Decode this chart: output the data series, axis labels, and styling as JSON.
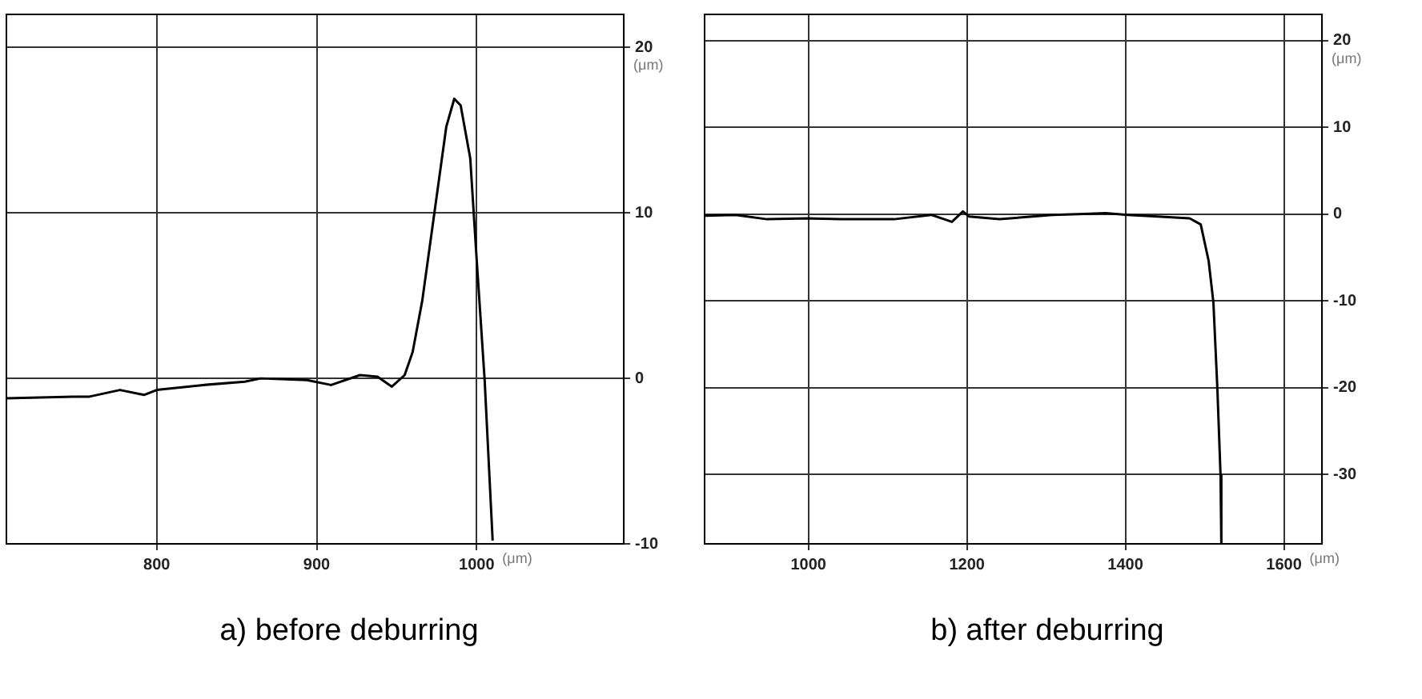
{
  "chart_data": [
    {
      "type": "line",
      "title": "a) before deburring",
      "xlabel": "(μm)",
      "ylabel": "(μm)",
      "x": [
        706,
        748,
        758,
        777,
        792,
        800,
        829,
        855,
        865,
        894,
        909,
        927,
        938,
        947,
        955,
        960,
        966,
        973,
        981,
        986,
        990,
        996,
        1000,
        1005,
        1010
      ],
      "series": [
        {
          "color": "#000000",
          "values": [
            -1.2,
            -1.1,
            -1.1,
            -0.7,
            -1.0,
            -0.7,
            -0.4,
            -0.2,
            0,
            -0.1,
            -0.4,
            0.2,
            0.1,
            -0.5,
            0.2,
            1.6,
            4.7,
            9.6,
            15.2,
            16.9,
            16.5,
            13.3,
            7.2,
            -0.1,
            -9.8
          ]
        }
      ],
      "xlim": [
        706,
        1092
      ],
      "xticks": [
        800,
        900,
        1000
      ],
      "ylim": [
        -10,
        22
      ],
      "yticks": [
        -10,
        0,
        10,
        20
      ],
      "grid": true,
      "marker": "none",
      "line_style": "solid",
      "legend": false
    },
    {
      "type": "line",
      "title": "b) after deburring",
      "xlabel": "(μm)",
      "ylabel": "(μm)",
      "x": [
        869,
        908,
        948,
        1000,
        1041,
        1108,
        1155,
        1181,
        1195,
        1203,
        1241,
        1308,
        1348,
        1375,
        1403,
        1441,
        1481,
        1495,
        1505,
        1511,
        1516,
        1520,
        1521
      ],
      "series": [
        {
          "color": "#000000",
          "values": [
            -0.2,
            -0.1,
            -0.6,
            -0.5,
            -0.6,
            -0.6,
            -0.1,
            -0.9,
            0.3,
            -0.3,
            -0.6,
            -0.1,
            0,
            0.1,
            -0.1,
            -0.3,
            -0.5,
            -1.2,
            -5.4,
            -10.2,
            -20.1,
            -30.1,
            -38
          ]
        }
      ],
      "xlim": [
        869,
        1648
      ],
      "xticks": [
        1000,
        1200,
        1400,
        1600
      ],
      "ylim": [
        -38,
        23
      ],
      "yticks": [
        -30,
        -20,
        -10,
        0,
        10,
        20
      ],
      "grid": true,
      "marker": "none",
      "line_style": "solid",
      "legend": false
    }
  ]
}
